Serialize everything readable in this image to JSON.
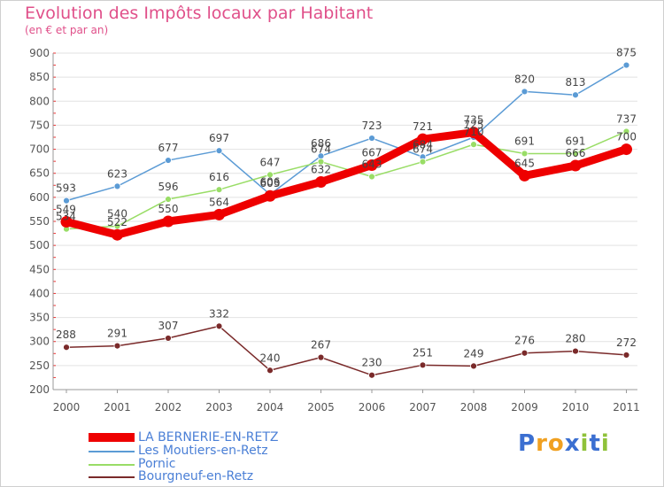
{
  "chart_data": {
    "type": "line",
    "title": "Evolution des Impôts locaux par Habitant",
    "subtitle": "(en € et par an)",
    "xlabel": "",
    "ylabel": "",
    "categories": [
      "2000",
      "2001",
      "2002",
      "2003",
      "2004",
      "2005",
      "2006",
      "2007",
      "2008",
      "2009",
      "2010",
      "2011"
    ],
    "ylim": [
      200,
      900
    ],
    "yticks": [
      200,
      250,
      300,
      350,
      400,
      450,
      500,
      550,
      600,
      650,
      700,
      750,
      800,
      850,
      900
    ],
    "grid": true,
    "series": [
      {
        "name": "LA BERNERIE-EN-RETZ",
        "color": "#ee0000",
        "values": [
          549,
          522,
          550,
          564,
          603,
          632,
          667,
          721,
          735,
          645,
          666,
          700
        ]
      },
      {
        "name": "Les Moutiers-en-Retz",
        "color": "#5b9bd5",
        "values": [
          593,
          623,
          677,
          697,
          606,
          686,
          723,
          684,
          725,
          820,
          813,
          875
        ]
      },
      {
        "name": "Pornic",
        "color": "#99dd66",
        "values": [
          534,
          540,
          596,
          616,
          647,
          674,
          643,
          674,
          710,
          691,
          691,
          737
        ]
      },
      {
        "name": "Bourgneuf-en-Retz",
        "color": "#7a2a2a",
        "values": [
          288,
          291,
          307,
          332,
          240,
          267,
          230,
          251,
          249,
          276,
          280,
          272
        ]
      }
    ]
  },
  "logo": {
    "text": "Proxiti",
    "letters": [
      "P",
      "r",
      "o",
      "x",
      "i",
      "t",
      "i"
    ]
  },
  "colors": {
    "title": "#e0508a",
    "legend_text": "#4a7fd6",
    "grid": "#e2e2e2"
  }
}
